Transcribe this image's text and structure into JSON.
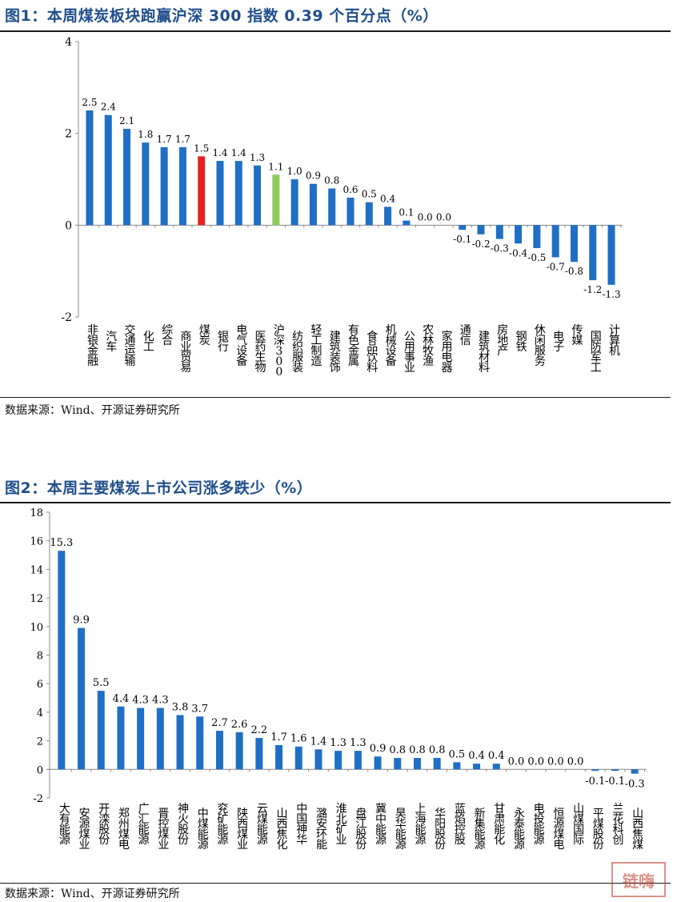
{
  "fig1": {
    "title": "图1：本周煤炭板块跑赢沪深 300 指数 0.39 个百分点（%）",
    "source": "数据来源：Wind、开源证券研究所"
  },
  "fig2": {
    "title": "图2：本周主要煤炭上市公司涨多跌少（%）",
    "source": "数据来源：Wind、开源证券研究所"
  },
  "watermark": "链嗨",
  "colors": {
    "bar": "#1f6fc5",
    "highlight_red": "#e52222",
    "highlight_green": "#8fcc5a",
    "title": "#1f4e8c"
  },
  "chart_data": [
    {
      "type": "bar",
      "title": "本周煤炭板块跑赢沪深 300 指数 0.39 个百分点（%）",
      "ylim": [
        -2,
        4
      ],
      "yticks": [
        -2,
        0,
        2,
        4
      ],
      "grid": false,
      "categories": [
        "非银金融",
        "汽车",
        "交通运输",
        "化工",
        "综合",
        "商业贸易",
        "煤炭",
        "银行",
        "电气设备",
        "医药生物",
        "沪深300",
        "纺织服装",
        "轻工制造",
        "建筑装饰",
        "有色金属",
        "食品饮料",
        "机械设备",
        "公用事业",
        "农林牧渔",
        "家用电器",
        "通信",
        "建筑材料",
        "房地产",
        "钢铁",
        "休闲服务",
        "电子",
        "传媒",
        "国防军工",
        "计算机"
      ],
      "values": [
        2.5,
        2.4,
        2.1,
        1.8,
        1.7,
        1.7,
        1.5,
        1.4,
        1.4,
        1.3,
        1.1,
        1.0,
        0.9,
        0.8,
        0.6,
        0.5,
        0.4,
        0.1,
        0.0,
        0.0,
        -0.1,
        -0.2,
        -0.3,
        -0.4,
        -0.5,
        -0.7,
        -0.8,
        -1.2,
        -1.3
      ],
      "labels": [
        "2.5",
        "2.4",
        "2.1",
        "1.8",
        "1.7",
        "1.7",
        "1.5",
        "1.4",
        "1.4",
        "1.3",
        "1.1",
        "1.0",
        "0.9",
        "0.8",
        "0.6",
        "0.5",
        "0.4",
        "0.1",
        "0.0",
        "0.0",
        "-0.1",
        "-0.2",
        "-0.3",
        "-0.4",
        "-0.5",
        "-0.7",
        "-0.8",
        "-1.2",
        "-1.3"
      ],
      "highlights": {
        "煤炭": "red",
        "沪深300": "green"
      }
    },
    {
      "type": "bar",
      "title": "本周主要煤炭上市公司涨多跌少（%）",
      "ylim": [
        -2,
        18
      ],
      "yticks": [
        -2,
        0,
        2,
        4,
        6,
        8,
        10,
        12,
        14,
        16,
        18
      ],
      "grid": false,
      "categories": [
        "大有能源",
        "安源煤业",
        "开滦股份",
        "郑州煤电",
        "广汇能源",
        "晋控煤业",
        "神火股份",
        "中煤能源",
        "兖矿能源",
        "陕西煤业",
        "云煤能源",
        "山西焦化",
        "中国神华",
        "潞安环能",
        "淮北矿业",
        "盘江股份",
        "冀中能源",
        "昊华能源",
        "上海能源",
        "华阳股份",
        "蓝焰控股",
        "新集能源",
        "甘肃能化",
        "永泰能源",
        "电投能源",
        "恒源煤电",
        "山煤国际",
        "平煤股份",
        "兰花科创",
        "山西焦煤"
      ],
      "values": [
        15.3,
        9.9,
        5.5,
        4.4,
        4.3,
        4.3,
        3.8,
        3.7,
        2.7,
        2.6,
        2.2,
        1.7,
        1.6,
        1.4,
        1.3,
        1.3,
        0.9,
        0.8,
        0.8,
        0.8,
        0.5,
        0.4,
        0.4,
        0.0,
        0.0,
        0.0,
        0.0,
        -0.1,
        -0.1,
        -0.3
      ],
      "labels": [
        "15.3",
        "9.9",
        "5.5",
        "4.4",
        "4.3",
        "4.3",
        "3.8",
        "3.7",
        "2.7",
        "2.6",
        "2.2",
        "1.7",
        "1.6",
        "1.4",
        "1.3",
        "1.3",
        "0.9",
        "0.8",
        "0.8",
        "0.8",
        "0.5",
        "0.4",
        "0.4",
        "0.0",
        "0.0",
        "0.0",
        "0.0",
        "-0.1",
        "-0.1",
        "-0.3"
      ]
    }
  ]
}
